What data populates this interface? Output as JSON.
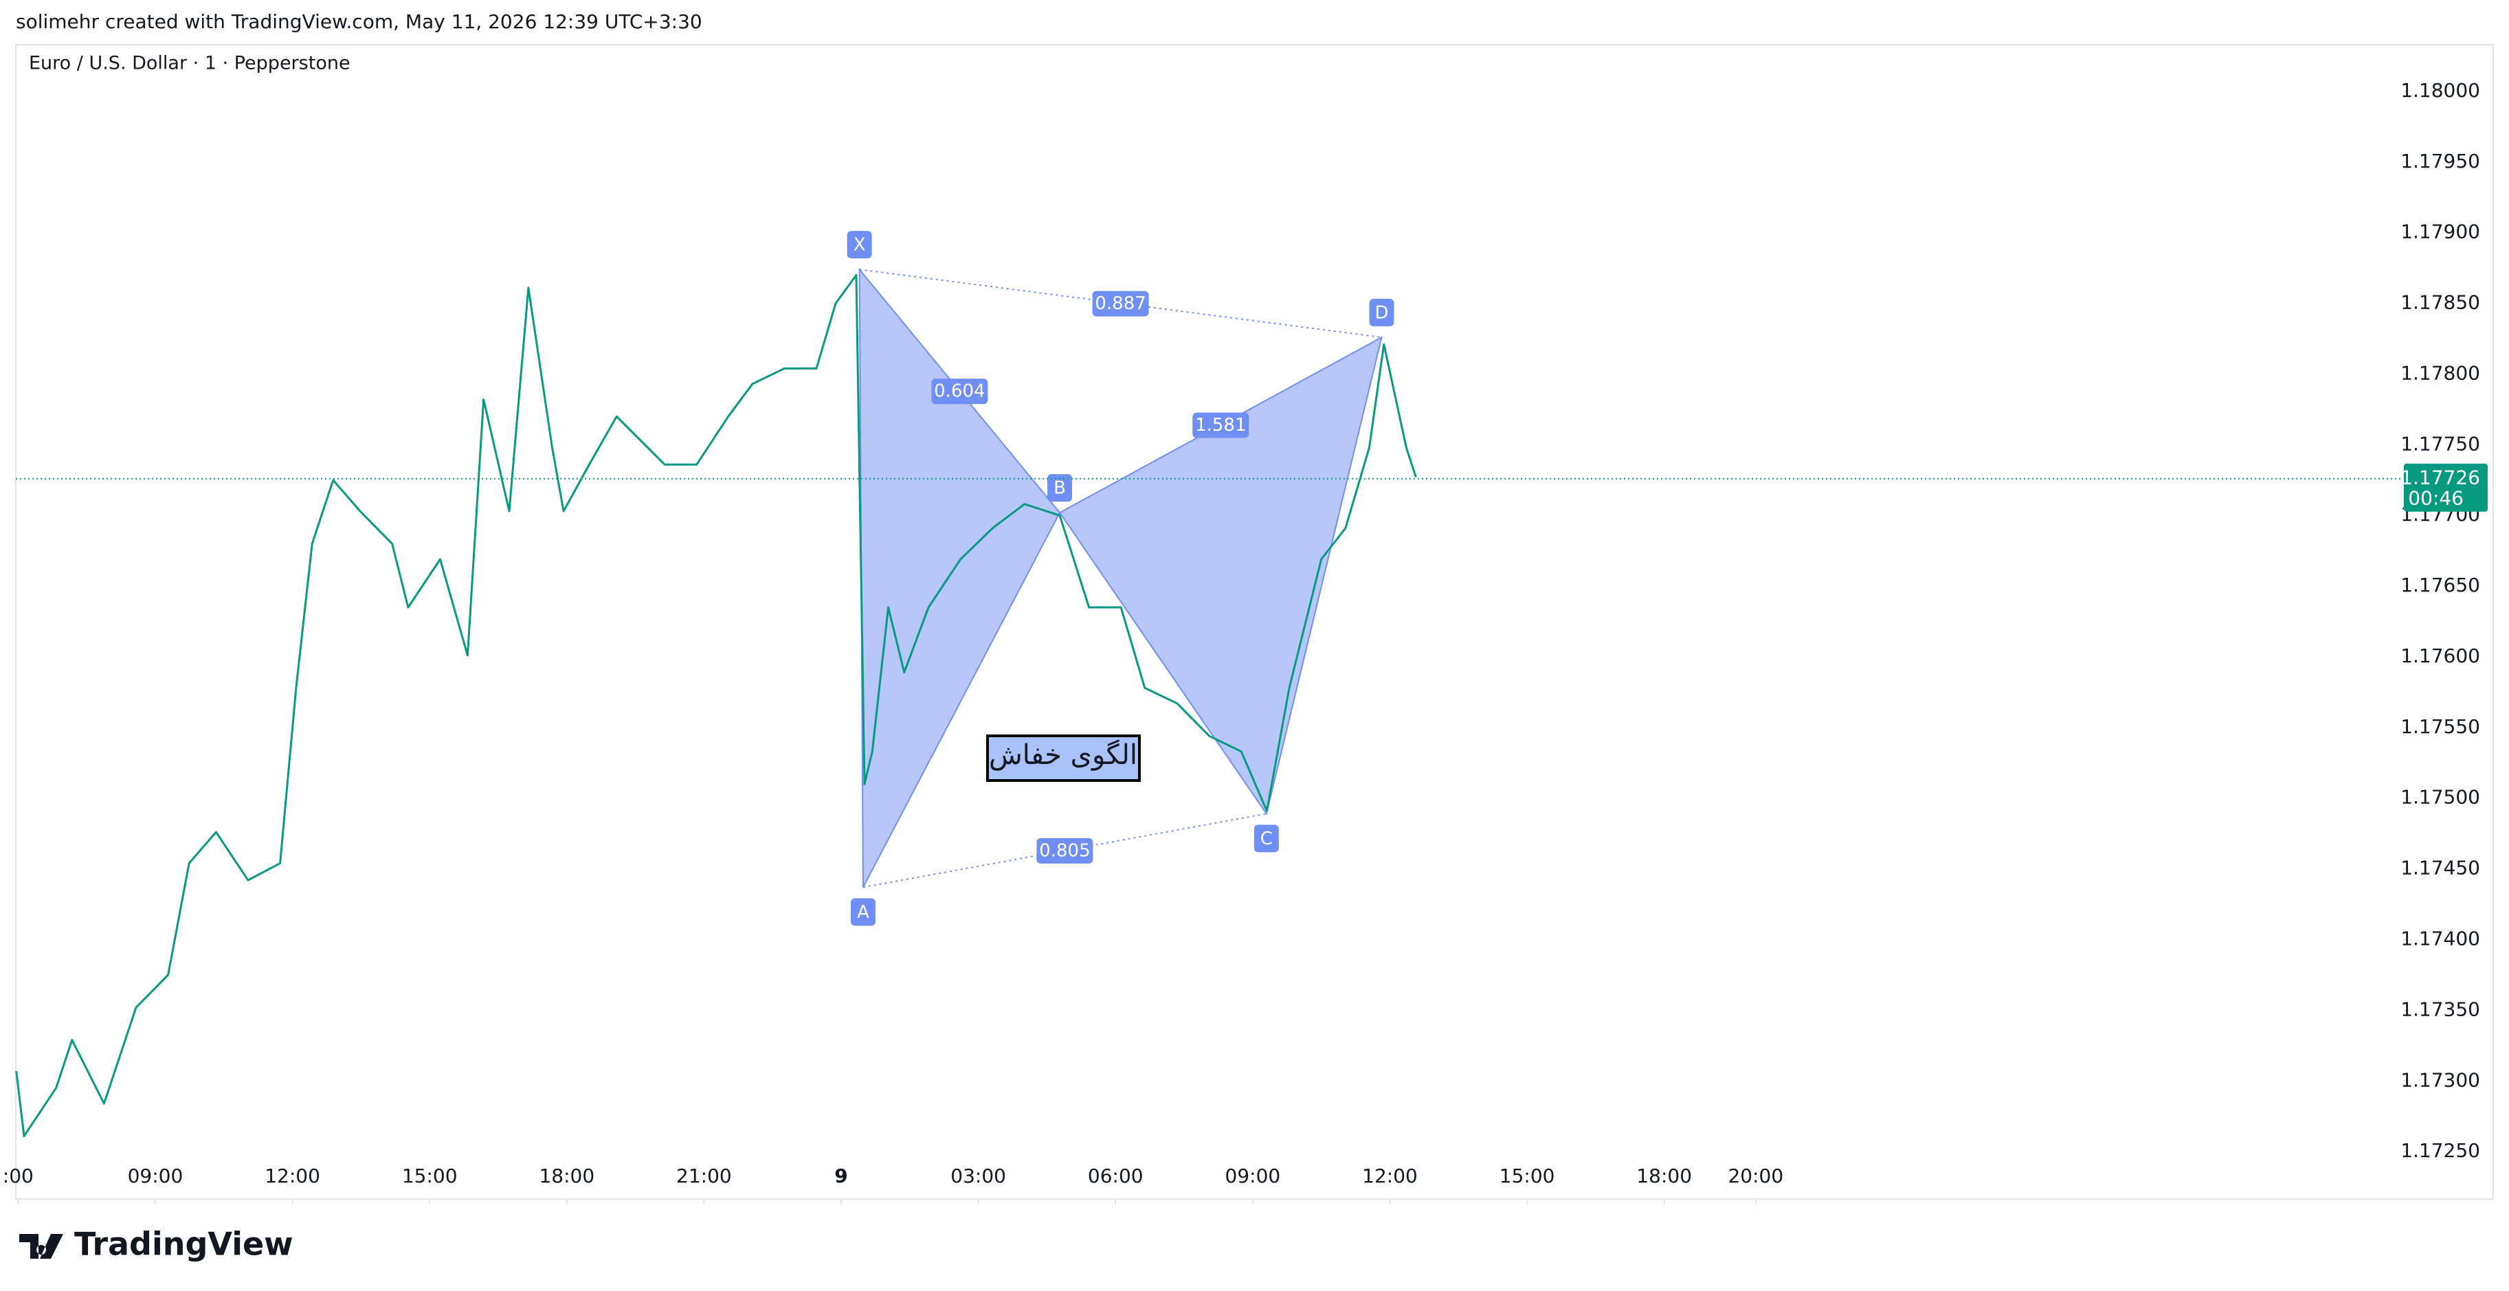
{
  "header": {
    "attribution": "solimehr created with TradingView.com, May 11, 2026 12:39 UTC+3:30"
  },
  "chart_data": {
    "type": "line",
    "title": "Euro / U.S. Dollar · 1 · Pepperstone",
    "color": "#089981",
    "x": [
      5.96,
      6.13,
      6.83,
      7.18,
      7.88,
      8.58,
      9.28,
      9.74,
      10.33,
      11.03,
      11.73,
      12.08,
      12.43,
      12.89,
      13.48,
      14.18,
      14.53,
      15.23,
      15.83,
      16.18,
      16.74,
      17.16,
      17.68,
      17.93,
      18.49,
      19.09,
      20.14,
      20.84,
      21.53,
      22.06,
      22.76,
      23.46,
      23.88,
      24.33,
      24.51,
      24.68,
      25.03,
      25.38,
      25.91,
      26.61,
      27.31,
      28.01,
      28.78,
      29.42,
      30.12,
      30.64,
      31.35,
      32.05,
      32.75,
      33.31,
      33.8,
      34.5,
      35.03,
      35.55,
      35.87,
      36.36,
      36.57
    ],
    "values": [
      1.17307,
      1.17261,
      1.17295,
      1.17329,
      1.17284,
      1.17352,
      1.17375,
      1.17454,
      1.17476,
      1.17442,
      1.17454,
      1.17578,
      1.1768,
      1.17725,
      1.17703,
      1.1768,
      1.17635,
      1.17669,
      1.17601,
      1.17782,
      1.17703,
      1.17861,
      1.17748,
      1.17703,
      1.17736,
      1.1777,
      1.17736,
      1.17736,
      1.1777,
      1.17793,
      1.17804,
      1.17804,
      1.1785,
      1.1787,
      1.1751,
      1.17533,
      1.17635,
      1.17589,
      1.17635,
      1.17669,
      1.17691,
      1.17708,
      1.177,
      1.17635,
      1.17635,
      1.17578,
      1.17567,
      1.17544,
      1.17533,
      1.17491,
      1.17578,
      1.17669,
      1.17691,
      1.17748,
      1.17821,
      1.17748,
      1.17727
    ],
    "xlim": [
      5.95,
      58.1
    ],
    "xticks": [
      {
        "value": 6,
        "label": ":00"
      },
      {
        "value": 9,
        "label": "09:00"
      },
      {
        "value": 12,
        "label": "12:00"
      },
      {
        "value": 15,
        "label": "15:00"
      },
      {
        "value": 18,
        "label": "18:00"
      },
      {
        "value": 21,
        "label": "21:00"
      },
      {
        "value": 24,
        "label": "9"
      },
      {
        "value": 27,
        "label": "03:00"
      },
      {
        "value": 30,
        "label": "06:00"
      },
      {
        "value": 33,
        "label": "09:00"
      },
      {
        "value": 36,
        "label": "12:00"
      },
      {
        "value": 39,
        "label": "15:00"
      },
      {
        "value": 42,
        "label": "18:00"
      },
      {
        "value": 44,
        "label": "20:00"
      }
    ],
    "ylim": [
      1.17218,
      1.18033
    ],
    "yticks": [
      {
        "value": 1.18,
        "label": "1.18000"
      },
      {
        "value": 1.1795,
        "label": "1.17950"
      },
      {
        "value": 1.179,
        "label": "1.17900"
      },
      {
        "value": 1.1785,
        "label": "1.17850"
      },
      {
        "value": 1.178,
        "label": "1.17800"
      },
      {
        "value": 1.1775,
        "label": "1.17750"
      },
      {
        "value": 1.177,
        "label": "1.17700"
      },
      {
        "value": 1.1765,
        "label": "1.17650"
      },
      {
        "value": 1.176,
        "label": "1.17600"
      },
      {
        "value": 1.1755,
        "label": "1.17550"
      },
      {
        "value": 1.175,
        "label": "1.17500"
      },
      {
        "value": 1.1745,
        "label": "1.17450"
      },
      {
        "value": 1.174,
        "label": "1.17400"
      },
      {
        "value": 1.1735,
        "label": "1.17350"
      },
      {
        "value": 1.173,
        "label": "1.17300"
      },
      {
        "value": 1.1725,
        "label": "1.17250"
      }
    ],
    "current_price": 1.17726,
    "countdown": "00:46",
    "price_tag_color": "#089981",
    "pattern": {
      "color": "#6f8ff5",
      "points": [
        {
          "label": "X",
          "x": 24.4,
          "y": 1.17874
        },
        {
          "label": "A",
          "x": 24.48,
          "y": 1.17437
        },
        {
          "label": "B",
          "x": 28.78,
          "y": 1.17702
        },
        {
          "label": "C",
          "x": 33.3,
          "y": 1.17489
        },
        {
          "label": "D",
          "x": 35.82,
          "y": 1.17826
        }
      ],
      "ratios": [
        "0.604",
        "1.581",
        "0.887",
        "0.805"
      ],
      "note": "الگوی خفاش"
    }
  },
  "footer": {
    "logo": "TradingView"
  }
}
